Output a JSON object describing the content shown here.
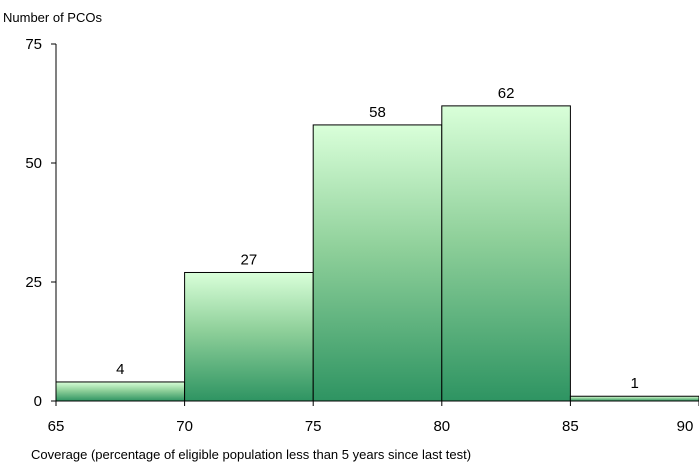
{
  "chart_data": {
    "type": "bar",
    "title": "",
    "ylabel": "Number of PCOs",
    "xlabel": "Coverage (percentage of eligible population less than 5 years since last test)",
    "bins": [
      {
        "from": 65,
        "to": 70,
        "value": 4
      },
      {
        "from": 70,
        "to": 75,
        "value": 27
      },
      {
        "from": 75,
        "to": 80,
        "value": 58
      },
      {
        "from": 80,
        "to": 85,
        "value": 62
      },
      {
        "from": 85,
        "to": 90,
        "value": 1
      }
    ],
    "xlim": [
      65,
      90
    ],
    "ylim": [
      0,
      75
    ],
    "x_ticks": [
      "65",
      "70",
      "75",
      "80",
      "85",
      "90"
    ],
    "y_ticks": [
      "0",
      "25",
      "50",
      "75"
    ],
    "data_labels": [
      "4",
      "27",
      "58",
      "62",
      "1"
    ],
    "grid": false,
    "legend": "none",
    "colors": {
      "bar_gradient_top": "#d9ffd9",
      "bar_gradient_mid": "#8fd09a",
      "bar_gradient_bottom": "#2e9462",
      "bar_outline": "#000000",
      "axis": "#000000"
    }
  }
}
